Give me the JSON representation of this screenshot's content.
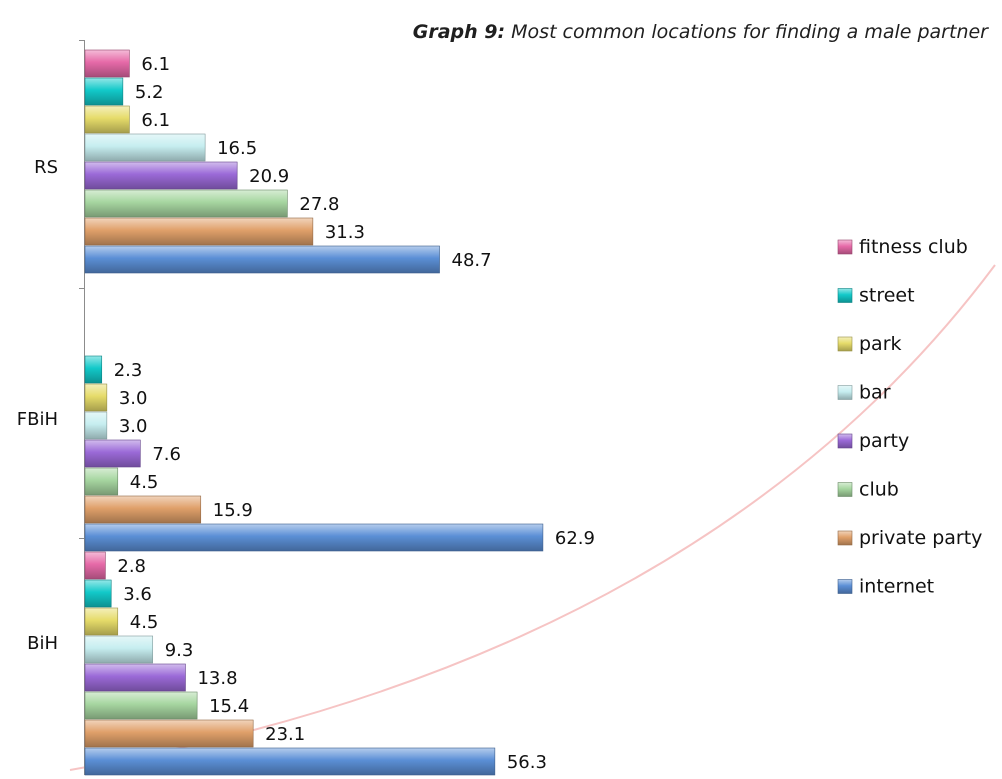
{
  "chart_data": {
    "type": "bar",
    "orientation": "horizontal",
    "title_lead": "Graph 9:",
    "title_text": " Most common locations for finding a male partner",
    "categories": [
      "RS",
      "FBiH",
      "BiH"
    ],
    "series": [
      {
        "name": "internet",
        "color": "#5b8fd6",
        "values": [
          48.7,
          62.9,
          56.3
        ]
      },
      {
        "name": "private party",
        "color": "#e0a06a",
        "values": [
          31.3,
          15.9,
          23.1
        ]
      },
      {
        "name": "club",
        "color": "#a6d6a0",
        "values": [
          27.8,
          4.5,
          15.4
        ]
      },
      {
        "name": "party",
        "color": "#9b6ad8",
        "values": [
          20.9,
          7.6,
          13.8
        ]
      },
      {
        "name": "bar",
        "color": "#c6eef0",
        "values": [
          16.5,
          3.0,
          9.3
        ]
      },
      {
        "name": "park",
        "color": "#e6dc6a",
        "values": [
          6.1,
          3.0,
          4.5
        ]
      },
      {
        "name": "street",
        "color": "#12c9c9",
        "values": [
          5.2,
          2.3,
          3.6
        ]
      },
      {
        "name": "fitness club",
        "color": "#e66aa8",
        "values": [
          6.1,
          null,
          2.8
        ]
      }
    ],
    "value_labels": {
      "RS": [
        "48.7",
        "31.3",
        "27.8",
        "20.9",
        "16.5",
        "6.1",
        "5.2",
        "6.1"
      ],
      "FBiH": [
        "62.9",
        "15.9",
        "4.5",
        "7.6",
        "3.0",
        "3.0",
        "2.3",
        ""
      ],
      "BiH": [
        "56.3",
        "23.1",
        "15.4",
        "13.8",
        "9.3",
        "4.5",
        "3.6",
        "2.8"
      ]
    },
    "legend_order": [
      "fitness club",
      "street",
      "park",
      "bar",
      "party",
      "club",
      "private party",
      "internet"
    ],
    "legend_position": "right",
    "grid": false
  }
}
